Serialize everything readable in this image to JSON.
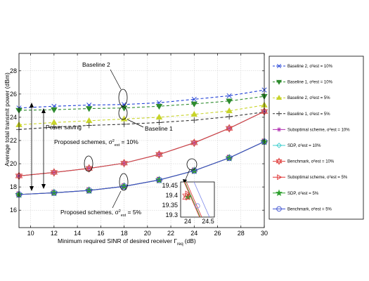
{
  "chart_data": {
    "type": "line",
    "xlabel": "Minimum required SINR of desired receiver Γ",
    "xlabel_sub": "req",
    "xlabel_unit": "(dB)",
    "ylabel": "Average total transmit power (dBm)",
    "xlim": [
      9,
      30
    ],
    "ylim": [
      14.5,
      29.5
    ],
    "xticks": [
      10,
      12,
      14,
      16,
      18,
      20,
      22,
      24,
      26,
      28,
      30
    ],
    "yticks": [
      16,
      18,
      20,
      22,
      24,
      26,
      28
    ],
    "grid": true,
    "legend_position": "outside-right",
    "x": [
      9,
      12,
      15,
      18,
      21,
      24,
      27,
      30
    ],
    "series": [
      {
        "name": "Baseline 2, σ²est = 10%",
        "color": "#1f3fd6",
        "dash": true,
        "marker": "x",
        "values": [
          24.8,
          24.95,
          25.05,
          25.1,
          25.25,
          25.55,
          25.85,
          26.35
        ]
      },
      {
        "name": "Baseline 1, σ²est = 10%",
        "color": "#2e8b2e",
        "dash": true,
        "marker": "tri-down",
        "values": [
          24.6,
          24.65,
          24.75,
          24.8,
          24.95,
          25.15,
          25.4,
          25.8
        ]
      },
      {
        "name": "Baseline 2, σ²est = 5%",
        "color": "#c8d42a",
        "dash": true,
        "marker": "tri-up",
        "values": [
          23.35,
          23.55,
          23.7,
          23.85,
          24.0,
          24.25,
          24.55,
          25.05
        ]
      },
      {
        "name": "Baseline 1, σ²est = 5%",
        "color": "#333333",
        "dash": true,
        "marker": "plus",
        "values": [
          22.95,
          23.15,
          23.3,
          23.4,
          23.55,
          23.75,
          24.05,
          24.45
        ]
      },
      {
        "name": "Suboptimal scheme, σ²est = 10%",
        "color": "#b02fb0",
        "dash": false,
        "marker": "asterisk",
        "values": [
          18.95,
          19.25,
          19.6,
          20.05,
          20.8,
          21.8,
          23.05,
          24.5
        ]
      },
      {
        "name": "SDP, σ²est = 10%",
        "color": "#3fcfcf",
        "dash": false,
        "marker": "diamond",
        "values": [
          18.95,
          19.25,
          19.6,
          20.05,
          20.8,
          21.8,
          23.05,
          24.5
        ]
      },
      {
        "name": "Benchmark, σ²est = 10%",
        "color": "#e0413f",
        "dash": false,
        "marker": "hexagram",
        "values": [
          18.95,
          19.25,
          19.6,
          20.05,
          20.8,
          21.8,
          23.05,
          24.5
        ]
      },
      {
        "name": "Suboptimal scheme, σ²est = 5%",
        "color": "#e03333",
        "dash": false,
        "marker": "tri-right",
        "values": [
          17.35,
          17.5,
          17.7,
          18.05,
          18.6,
          19.4,
          20.5,
          21.9
        ]
      },
      {
        "name": "SDP, σ²est = 5%",
        "color": "#2ea02e",
        "dash": false,
        "marker": "star",
        "values": [
          17.35,
          17.5,
          17.7,
          18.05,
          18.6,
          19.4,
          20.5,
          21.9
        ]
      },
      {
        "name": "Benchmark, σ²est = 5%",
        "color": "#3a4fd0",
        "dash": false,
        "marker": "circle",
        "values": [
          17.35,
          17.5,
          17.7,
          18.05,
          18.6,
          19.4,
          20.5,
          21.9
        ]
      }
    ],
    "annotations": {
      "baseline2": "Baseline 2",
      "baseline1": "Baseline 1",
      "power_saving": "Power saving",
      "proposed10": "Proposed schemes, σ",
      "proposed10_sub": "est",
      "proposed10_tail": " = 10%",
      "proposed5": "Proposed schemes, σ",
      "proposed5_sub": "est",
      "proposed5_tail": " = 5%"
    },
    "inset": {
      "xlim": [
        23.5,
        24.7
      ],
      "ylim": [
        19.28,
        19.5
      ],
      "xticks": [
        "24",
        "24.5"
      ],
      "yticks": [
        "19.3",
        "19.35",
        "19.4",
        "19.45"
      ]
    }
  }
}
